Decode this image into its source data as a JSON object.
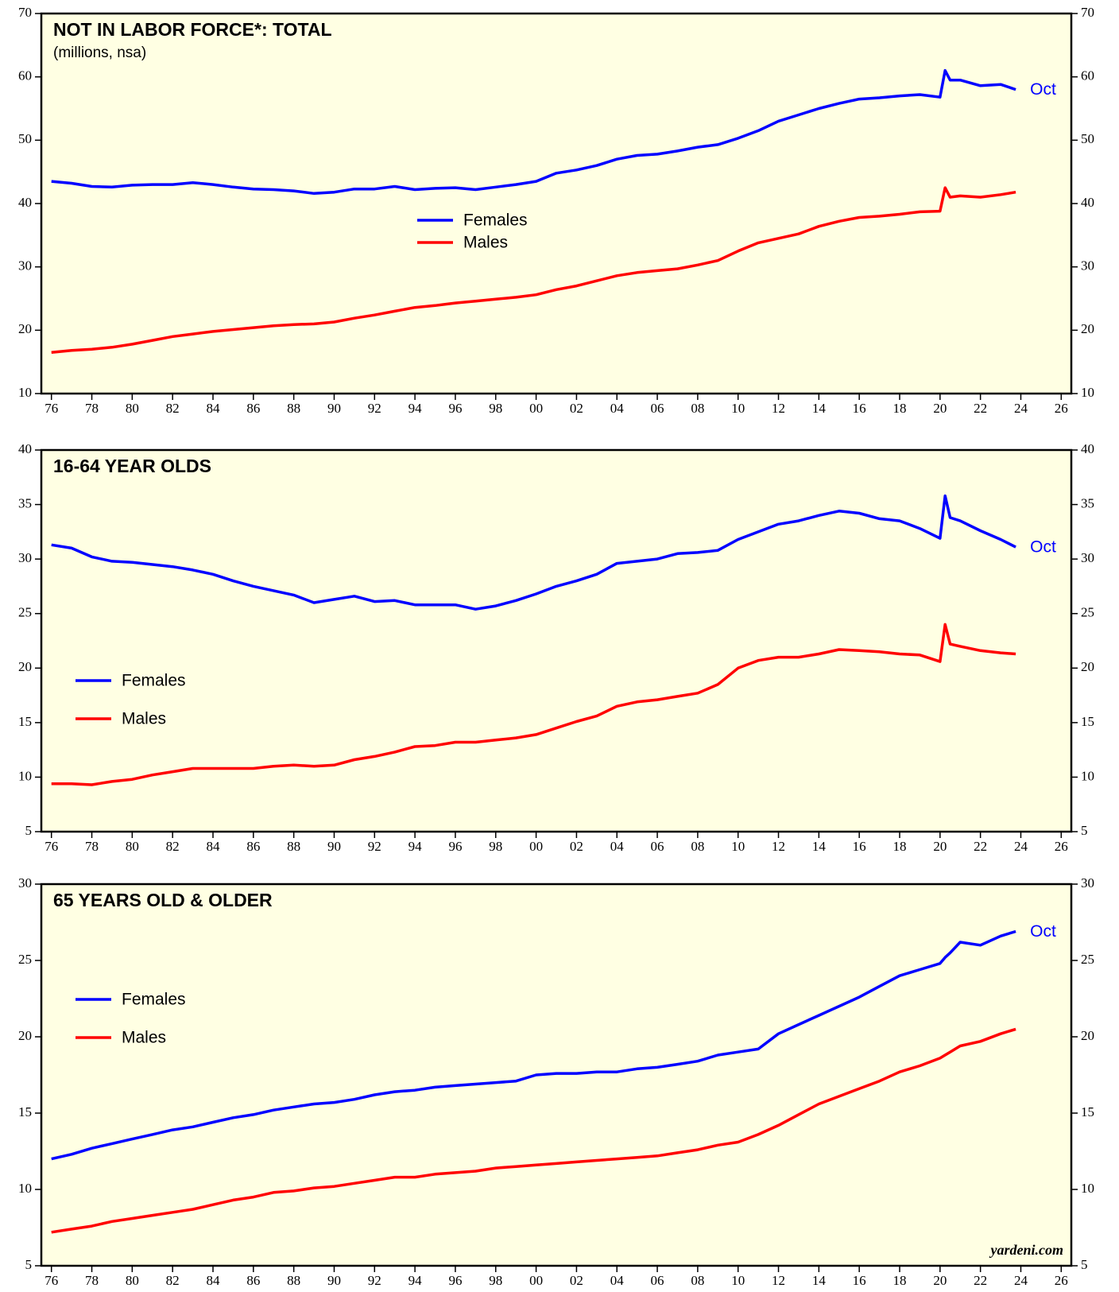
{
  "chart_data": [
    {
      "type": "line",
      "title": "NOT IN LABOR FORCE*: TOTAL",
      "subtitle": "(millions, nsa)",
      "legend": "center",
      "end_label": "Oct",
      "x": [
        1976,
        1977,
        1978,
        1979,
        1980,
        1981,
        1982,
        1983,
        1984,
        1985,
        1986,
        1987,
        1988,
        1989,
        1990,
        1991,
        1992,
        1993,
        1994,
        1995,
        1996,
        1997,
        1998,
        1999,
        2000,
        2001,
        2002,
        2003,
        2004,
        2005,
        2006,
        2007,
        2008,
        2009,
        2010,
        2011,
        2012,
        2013,
        2014,
        2015,
        2016,
        2017,
        2018,
        2019,
        2020,
        2020.25,
        2020.5,
        2021,
        2022,
        2023,
        2023.75
      ],
      "series": [
        {
          "name": "Females",
          "color": "#0000ff",
          "values": [
            43.5,
            43.2,
            42.7,
            42.6,
            42.9,
            43.0,
            43.0,
            43.3,
            43.0,
            42.6,
            42.3,
            42.2,
            42.0,
            41.6,
            41.8,
            42.3,
            42.3,
            42.7,
            42.2,
            42.4,
            42.5,
            42.2,
            42.6,
            43.0,
            43.5,
            44.8,
            45.3,
            46.0,
            47.0,
            47.6,
            47.8,
            48.3,
            48.9,
            49.3,
            50.3,
            51.5,
            53.0,
            54.0,
            55.0,
            55.8,
            56.5,
            56.7,
            57.0,
            57.2,
            56.8,
            61.0,
            59.5,
            59.5,
            58.6,
            58.8,
            58.0
          ]
        },
        {
          "name": "Males",
          "color": "#ff0000",
          "values": [
            16.5,
            16.8,
            17.0,
            17.3,
            17.8,
            18.4,
            19.0,
            19.4,
            19.8,
            20.1,
            20.4,
            20.7,
            20.9,
            21.0,
            21.3,
            21.9,
            22.4,
            23.0,
            23.6,
            23.9,
            24.3,
            24.6,
            24.9,
            25.2,
            25.6,
            26.4,
            27.0,
            27.8,
            28.6,
            29.1,
            29.4,
            29.7,
            30.3,
            31.0,
            32.5,
            33.8,
            34.5,
            35.2,
            36.4,
            37.2,
            37.8,
            38.0,
            38.3,
            38.7,
            38.8,
            42.5,
            41.0,
            41.2,
            41.0,
            41.4,
            41.8
          ]
        }
      ],
      "xlim": [
        1975.5,
        2026.5
      ],
      "xticks": [
        {
          "value": 1976,
          "label": "76"
        },
        {
          "value": 1978,
          "label": "78"
        },
        {
          "value": 1980,
          "label": "80"
        },
        {
          "value": 1982,
          "label": "82"
        },
        {
          "value": 1984,
          "label": "84"
        },
        {
          "value": 1986,
          "label": "86"
        },
        {
          "value": 1988,
          "label": "88"
        },
        {
          "value": 1990,
          "label": "90"
        },
        {
          "value": 1992,
          "label": "92"
        },
        {
          "value": 1994,
          "label": "94"
        },
        {
          "value": 1996,
          "label": "96"
        },
        {
          "value": 1998,
          "label": "98"
        },
        {
          "value": 2000,
          "label": "00"
        },
        {
          "value": 2002,
          "label": "02"
        },
        {
          "value": 2004,
          "label": "04"
        },
        {
          "value": 2006,
          "label": "06"
        },
        {
          "value": 2008,
          "label": "08"
        },
        {
          "value": 2010,
          "label": "10"
        },
        {
          "value": 2012,
          "label": "12"
        },
        {
          "value": 2014,
          "label": "14"
        },
        {
          "value": 2016,
          "label": "16"
        },
        {
          "value": 2018,
          "label": "18"
        },
        {
          "value": 2020,
          "label": "20"
        },
        {
          "value": 2022,
          "label": "22"
        },
        {
          "value": 2024,
          "label": "24"
        },
        {
          "value": 2026,
          "label": "26"
        }
      ],
      "ylim": [
        10,
        70
      ],
      "yticks": [
        10,
        20,
        30,
        40,
        50,
        60,
        70
      ]
    },
    {
      "type": "line",
      "title": "16-64 YEAR OLDS",
      "legend": "left",
      "end_label": "Oct",
      "x": [
        1976,
        1977,
        1978,
        1979,
        1980,
        1981,
        1982,
        1983,
        1984,
        1985,
        1986,
        1987,
        1988,
        1989,
        1990,
        1991,
        1992,
        1993,
        1994,
        1995,
        1996,
        1997,
        1998,
        1999,
        2000,
        2001,
        2002,
        2003,
        2004,
        2005,
        2006,
        2007,
        2008,
        2009,
        2010,
        2011,
        2012,
        2013,
        2014,
        2015,
        2016,
        2017,
        2018,
        2019,
        2020,
        2020.25,
        2020.5,
        2021,
        2022,
        2023,
        2023.75
      ],
      "series": [
        {
          "name": "Females",
          "color": "#0000ff",
          "values": [
            31.3,
            31.0,
            30.2,
            29.8,
            29.7,
            29.5,
            29.3,
            29.0,
            28.6,
            28.0,
            27.5,
            27.1,
            26.7,
            26.0,
            26.3,
            26.6,
            26.1,
            26.2,
            25.8,
            25.8,
            25.8,
            25.4,
            25.7,
            26.2,
            26.8,
            27.5,
            28.0,
            28.6,
            29.6,
            29.8,
            30.0,
            30.5,
            30.6,
            30.8,
            31.8,
            32.5,
            33.2,
            33.5,
            34.0,
            34.4,
            34.2,
            33.7,
            33.5,
            32.8,
            31.9,
            35.8,
            33.8,
            33.5,
            32.6,
            31.8,
            31.1
          ]
        },
        {
          "name": "Males",
          "color": "#ff0000",
          "values": [
            9.4,
            9.4,
            9.3,
            9.6,
            9.8,
            10.2,
            10.5,
            10.8,
            10.8,
            10.8,
            10.8,
            11.0,
            11.1,
            11.0,
            11.1,
            11.6,
            11.9,
            12.3,
            12.8,
            12.9,
            13.2,
            13.2,
            13.4,
            13.6,
            13.9,
            14.5,
            15.1,
            15.6,
            16.5,
            16.9,
            17.1,
            17.4,
            17.7,
            18.5,
            20.0,
            20.7,
            21.0,
            21.0,
            21.3,
            21.7,
            21.6,
            21.5,
            21.3,
            21.2,
            20.6,
            24.0,
            22.2,
            22.0,
            21.6,
            21.4,
            21.3
          ]
        }
      ],
      "xlim": [
        1975.5,
        2026.5
      ],
      "xticks": [
        {
          "value": 1976,
          "label": "76"
        },
        {
          "value": 1978,
          "label": "78"
        },
        {
          "value": 1980,
          "label": "80"
        },
        {
          "value": 1982,
          "label": "82"
        },
        {
          "value": 1984,
          "label": "84"
        },
        {
          "value": 1986,
          "label": "86"
        },
        {
          "value": 1988,
          "label": "88"
        },
        {
          "value": 1990,
          "label": "90"
        },
        {
          "value": 1992,
          "label": "92"
        },
        {
          "value": 1994,
          "label": "94"
        },
        {
          "value": 1996,
          "label": "96"
        },
        {
          "value": 1998,
          "label": "98"
        },
        {
          "value": 2000,
          "label": "00"
        },
        {
          "value": 2002,
          "label": "02"
        },
        {
          "value": 2004,
          "label": "04"
        },
        {
          "value": 2006,
          "label": "06"
        },
        {
          "value": 2008,
          "label": "08"
        },
        {
          "value": 2010,
          "label": "10"
        },
        {
          "value": 2012,
          "label": "12"
        },
        {
          "value": 2014,
          "label": "14"
        },
        {
          "value": 2016,
          "label": "16"
        },
        {
          "value": 2018,
          "label": "18"
        },
        {
          "value": 2020,
          "label": "20"
        },
        {
          "value": 2022,
          "label": "22"
        },
        {
          "value": 2024,
          "label": "24"
        },
        {
          "value": 2026,
          "label": "26"
        }
      ],
      "ylim": [
        5,
        40
      ],
      "yticks": [
        5,
        10,
        15,
        20,
        25,
        30,
        35,
        40
      ]
    },
    {
      "type": "line",
      "title": "65 YEARS OLD & OLDER",
      "legend": "left",
      "end_label": "Oct",
      "source": "yardeni.com",
      "x": [
        1976,
        1977,
        1978,
        1979,
        1980,
        1981,
        1982,
        1983,
        1984,
        1985,
        1986,
        1987,
        1988,
        1989,
        1990,
        1991,
        1992,
        1993,
        1994,
        1995,
        1996,
        1997,
        1998,
        1999,
        2000,
        2001,
        2002,
        2003,
        2004,
        2005,
        2006,
        2007,
        2008,
        2009,
        2010,
        2011,
        2012,
        2013,
        2014,
        2015,
        2016,
        2017,
        2018,
        2019,
        2020,
        2020.25,
        2020.5,
        2021,
        2022,
        2023,
        2023.75
      ],
      "series": [
        {
          "name": "Females",
          "color": "#0000ff",
          "values": [
            12.0,
            12.3,
            12.7,
            13.0,
            13.3,
            13.6,
            13.9,
            14.1,
            14.4,
            14.7,
            14.9,
            15.2,
            15.4,
            15.6,
            15.7,
            15.9,
            16.2,
            16.4,
            16.5,
            16.7,
            16.8,
            16.9,
            17.0,
            17.1,
            17.5,
            17.6,
            17.6,
            17.7,
            17.7,
            17.9,
            18.0,
            18.2,
            18.4,
            18.8,
            19.0,
            19.2,
            20.2,
            20.8,
            21.4,
            22.0,
            22.6,
            23.3,
            24.0,
            24.4,
            24.8,
            25.2,
            25.5,
            26.2,
            26.0,
            26.6,
            26.9
          ]
        },
        {
          "name": "Males",
          "color": "#ff0000",
          "values": [
            7.2,
            7.4,
            7.6,
            7.9,
            8.1,
            8.3,
            8.5,
            8.7,
            9.0,
            9.3,
            9.5,
            9.8,
            9.9,
            10.1,
            10.2,
            10.4,
            10.6,
            10.8,
            10.8,
            11.0,
            11.1,
            11.2,
            11.4,
            11.5,
            11.6,
            11.7,
            11.8,
            11.9,
            12.0,
            12.1,
            12.2,
            12.4,
            12.6,
            12.9,
            13.1,
            13.6,
            14.2,
            14.9,
            15.6,
            16.1,
            16.6,
            17.1,
            17.7,
            18.1,
            18.6,
            18.8,
            19.0,
            19.4,
            19.7,
            20.2,
            20.5
          ]
        }
      ],
      "xlim": [
        1975.5,
        2026.5
      ],
      "xticks": [
        {
          "value": 1976,
          "label": "76"
        },
        {
          "value": 1978,
          "label": "78"
        },
        {
          "value": 1980,
          "label": "80"
        },
        {
          "value": 1982,
          "label": "82"
        },
        {
          "value": 1984,
          "label": "84"
        },
        {
          "value": 1986,
          "label": "86"
        },
        {
          "value": 1988,
          "label": "88"
        },
        {
          "value": 1990,
          "label": "90"
        },
        {
          "value": 1992,
          "label": "92"
        },
        {
          "value": 1994,
          "label": "94"
        },
        {
          "value": 1996,
          "label": "96"
        },
        {
          "value": 1998,
          "label": "98"
        },
        {
          "value": 2000,
          "label": "00"
        },
        {
          "value": 2002,
          "label": "02"
        },
        {
          "value": 2004,
          "label": "04"
        },
        {
          "value": 2006,
          "label": "06"
        },
        {
          "value": 2008,
          "label": "08"
        },
        {
          "value": 2010,
          "label": "10"
        },
        {
          "value": 2012,
          "label": "12"
        },
        {
          "value": 2014,
          "label": "14"
        },
        {
          "value": 2016,
          "label": "16"
        },
        {
          "value": 2018,
          "label": "18"
        },
        {
          "value": 2020,
          "label": "20"
        },
        {
          "value": 2022,
          "label": "22"
        },
        {
          "value": 2024,
          "label": "24"
        },
        {
          "value": 2026,
          "label": "26"
        }
      ],
      "ylim": [
        5,
        30
      ],
      "yticks": [
        5,
        10,
        15,
        20,
        25,
        30
      ]
    }
  ]
}
